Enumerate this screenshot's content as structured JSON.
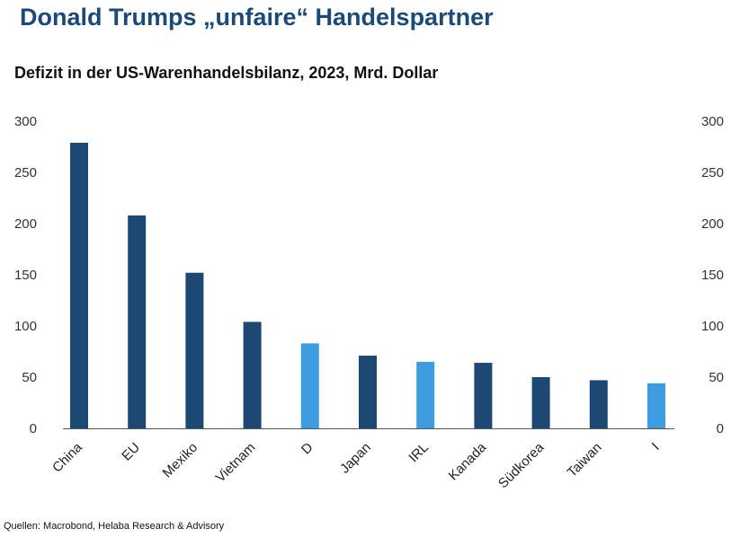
{
  "header": {
    "title": "Donald Trumps „unfaire“ Handelspartner",
    "subtitle": "Defizit in der US-Warenhandelsbilanz, 2023, Mrd. Dollar"
  },
  "footer": {
    "source": "Quellen: Macrobond, Helaba Research & Advisory"
  },
  "colors": {
    "dark": "#1c4873",
    "light": "#3e9de0"
  },
  "chart_data": {
    "type": "bar",
    "title": "Defizit in der US-Warenhandelsbilanz, 2023, Mrd. Dollar",
    "categories": [
      "China",
      "EU",
      "Mexiko",
      "Vietnam",
      "D",
      "Japan",
      "IRL",
      "Kanada",
      "Südkorea",
      "Taiwan",
      "I"
    ],
    "values": [
      279,
      208,
      152,
      104,
      83,
      71,
      65,
      64,
      50,
      47,
      44
    ],
    "highlight": [
      false,
      false,
      false,
      false,
      true,
      false,
      true,
      false,
      false,
      false,
      true
    ],
    "ylim": [
      0,
      300
    ],
    "yticks": [
      0,
      50,
      100,
      150,
      200,
      250,
      300
    ],
    "dual_y_axis": true,
    "grid": false,
    "xlabel": "",
    "ylabel": ""
  }
}
